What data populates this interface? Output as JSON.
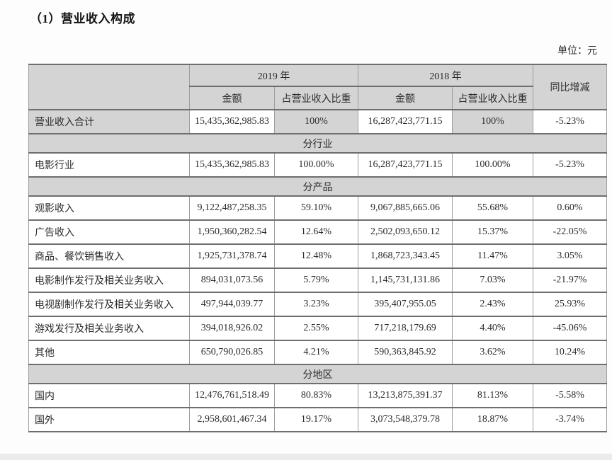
{
  "page": {
    "title": "（1）营业收入构成",
    "unit_label": "单位：元"
  },
  "table": {
    "header": {
      "year_2019": "2019 年",
      "year_2018": "2018 年",
      "yoy": "同比增减",
      "amount": "金额",
      "pct": "占营业收入比重"
    },
    "colors": {
      "header_bg": "#d4d4d4",
      "border_horizontal": "#6e6e6e",
      "border_vertical": "#9e9e9e",
      "text": "#2b2b2b"
    },
    "rows": [
      {
        "type": "data",
        "highlight": true,
        "label": "营业收入合计",
        "a2019": "15,435,362,985.83",
        "p2019": "100%",
        "a2018": "16,287,423,771.15",
        "p2018": "100%",
        "yoy": "-5.23%"
      },
      {
        "type": "section",
        "label": "分行业"
      },
      {
        "type": "data",
        "label": "电影行业",
        "a2019": "15,435,362,985.83",
        "p2019": "100.00%",
        "a2018": "16,287,423,771.15",
        "p2018": "100.00%",
        "yoy": "-5.23%"
      },
      {
        "type": "section",
        "label": "分产品"
      },
      {
        "type": "data",
        "label": "观影收入",
        "a2019": "9,122,487,258.35",
        "p2019": "59.10%",
        "a2018": "9,067,885,665.06",
        "p2018": "55.68%",
        "yoy": "0.60%"
      },
      {
        "type": "data",
        "label": "广告收入",
        "a2019": "1,950,360,282.54",
        "p2019": "12.64%",
        "a2018": "2,502,093,650.12",
        "p2018": "15.37%",
        "yoy": "-22.05%"
      },
      {
        "type": "data",
        "label": "商品、餐饮销售收入",
        "a2019": "1,925,731,378.74",
        "p2019": "12.48%",
        "a2018": "1,868,723,343.45",
        "p2018": "11.47%",
        "yoy": "3.05%"
      },
      {
        "type": "data",
        "label": "电影制作发行及相关业务收入",
        "a2019": "894,031,073.56",
        "p2019": "5.79%",
        "a2018": "1,145,731,131.86",
        "p2018": "7.03%",
        "yoy": "-21.97%"
      },
      {
        "type": "data",
        "label": "电视剧制作发行及相关业务收入",
        "a2019": "497,944,039.77",
        "p2019": "3.23%",
        "a2018": "395,407,955.05",
        "p2018": "2.43%",
        "yoy": "25.93%"
      },
      {
        "type": "data",
        "label": "游戏发行及相关业务收入",
        "a2019": "394,018,926.02",
        "p2019": "2.55%",
        "a2018": "717,218,179.69",
        "p2018": "4.40%",
        "yoy": "-45.06%"
      },
      {
        "type": "data",
        "label": "其他",
        "a2019": "650,790,026.85",
        "p2019": "4.21%",
        "a2018": "590,363,845.92",
        "p2018": "3.62%",
        "yoy": "10.24%"
      },
      {
        "type": "section",
        "label": "分地区"
      },
      {
        "type": "data",
        "label": "国内",
        "a2019": "12,476,761,518.49",
        "p2019": "80.83%",
        "a2018": "13,213,875,391.37",
        "p2018": "81.13%",
        "yoy": "-5.58%"
      },
      {
        "type": "data",
        "label": "国外",
        "a2019": "2,958,601,467.34",
        "p2019": "19.17%",
        "a2018": "3,073,548,379.78",
        "p2018": "18.87%",
        "yoy": "-3.74%"
      }
    ]
  }
}
